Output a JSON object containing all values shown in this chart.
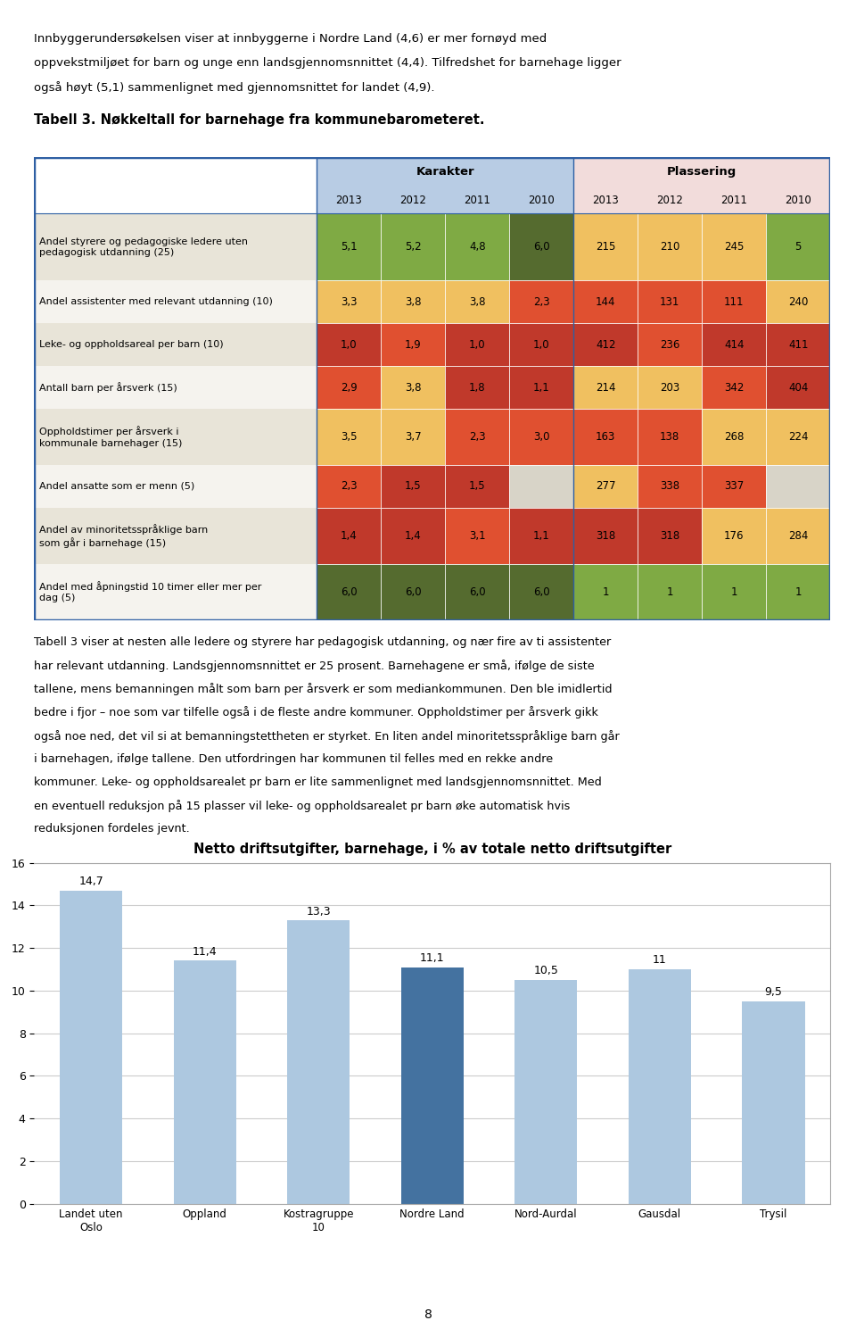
{
  "intro_lines": [
    "Innbyggerundersøkelsen viser at innbyggerne i Nordre Land (4,6) er mer fornøyd med",
    "oppvekstmiljøet for barn og unge enn landsgjennomsnnittet (4,4). Tilfredshet for barnehage ligger",
    "også høyt (5,1) sammenlignet med gjennomsnittet for landet (4,9)."
  ],
  "table_title": "Tabell 3. Nøkkeltall for barnehage fra kommunebarometeret.",
  "table_rows": [
    {
      "label": "Andel styrere og pedagogiske ledere uten\npedagogisk utdanning (25)",
      "kar_2013": "5,1",
      "kar_2012": "5,2",
      "kar_2011": "4,8",
      "kar_2010": "6,0",
      "pla_2013": "215",
      "pla_2012": "210",
      "pla_2011": "245",
      "pla_2010": "5",
      "kar_colors": [
        "#7faa44",
        "#7faa44",
        "#7faa44",
        "#556b2f"
      ],
      "pla_colors": [
        "#f0c060",
        "#f0c060",
        "#f0c060",
        "#7faa44"
      ]
    },
    {
      "label": "Andel assistenter med relevant utdanning (10)",
      "kar_2013": "3,3",
      "kar_2012": "3,8",
      "kar_2011": "3,8",
      "kar_2010": "2,3",
      "pla_2013": "144",
      "pla_2012": "131",
      "pla_2011": "111",
      "pla_2010": "240",
      "kar_colors": [
        "#f0c060",
        "#f0c060",
        "#f0c060",
        "#e05030"
      ],
      "pla_colors": [
        "#e05030",
        "#e05030",
        "#e05030",
        "#f0c060"
      ]
    },
    {
      "label": "Leke- og oppholdsareal per barn (10)",
      "kar_2013": "1,0",
      "kar_2012": "1,9",
      "kar_2011": "1,0",
      "kar_2010": "1,0",
      "pla_2013": "412",
      "pla_2012": "236",
      "pla_2011": "414",
      "pla_2010": "411",
      "kar_colors": [
        "#c0392b",
        "#e05030",
        "#c0392b",
        "#c0392b"
      ],
      "pla_colors": [
        "#c0392b",
        "#e05030",
        "#c0392b",
        "#c0392b"
      ]
    },
    {
      "label": "Antall barn per årsverk (15)",
      "kar_2013": "2,9",
      "kar_2012": "3,8",
      "kar_2011": "1,8",
      "kar_2010": "1,1",
      "pla_2013": "214",
      "pla_2012": "203",
      "pla_2011": "342",
      "pla_2010": "404",
      "kar_colors": [
        "#e05030",
        "#f0c060",
        "#c0392b",
        "#c0392b"
      ],
      "pla_colors": [
        "#f0c060",
        "#f0c060",
        "#e05030",
        "#c0392b"
      ]
    },
    {
      "label": "Oppholdstimer per årsverk i\nkommunale barnehager (15)",
      "kar_2013": "3,5",
      "kar_2012": "3,7",
      "kar_2011": "2,3",
      "kar_2010": "3,0",
      "pla_2013": "163",
      "pla_2012": "138",
      "pla_2011": "268",
      "pla_2010": "224",
      "kar_colors": [
        "#f0c060",
        "#f0c060",
        "#e05030",
        "#e05030"
      ],
      "pla_colors": [
        "#e05030",
        "#e05030",
        "#f0c060",
        "#f0c060"
      ]
    },
    {
      "label": "Andel ansatte som er menn (5)",
      "kar_2013": "2,3",
      "kar_2012": "1,5",
      "kar_2011": "1,5",
      "kar_2010": "",
      "pla_2013": "277",
      "pla_2012": "338",
      "pla_2011": "337",
      "pla_2010": "",
      "kar_colors": [
        "#e05030",
        "#c0392b",
        "#c0392b",
        "#d8d4c8"
      ],
      "pla_colors": [
        "#f0c060",
        "#e05030",
        "#e05030",
        "#d8d4c8"
      ]
    },
    {
      "label": "Andel av minoritetsspråklige barn\nsom går i barnehage (15)",
      "kar_2013": "1,4",
      "kar_2012": "1,4",
      "kar_2011": "3,1",
      "kar_2010": "1,1",
      "pla_2013": "318",
      "pla_2012": "318",
      "pla_2011": "176",
      "pla_2010": "284",
      "kar_colors": [
        "#c0392b",
        "#c0392b",
        "#e05030",
        "#c0392b"
      ],
      "pla_colors": [
        "#c0392b",
        "#c0392b",
        "#f0c060",
        "#f0c060"
      ]
    },
    {
      "label": "Andel med åpningstid 10 timer eller mer per\ndag (5)",
      "kar_2013": "6,0",
      "kar_2012": "6,0",
      "kar_2011": "6,0",
      "kar_2010": "6,0",
      "pla_2013": "1",
      "pla_2012": "1",
      "pla_2011": "1",
      "pla_2010": "1",
      "kar_colors": [
        "#556b2f",
        "#556b2f",
        "#556b2f",
        "#556b2f"
      ],
      "pla_colors": [
        "#7faa44",
        "#7faa44",
        "#7faa44",
        "#7faa44"
      ]
    }
  ],
  "para_lines": [
    "Tabell 3 viser at nesten alle ledere og styrere har pedagogisk utdanning, og nær fire av ti assistenter",
    "har relevant utdanning. Landsgjennomsnnittet er 25 prosent. Barnehagene er små, ifølge de siste",
    "tallene, mens bemanningen målt som barn per årsverk er som mediankommunen. Den ble imidlertid",
    "bedre i fjor – noe som var tilfelle også i de fleste andre kommuner. Oppholdstimer per årsverk gikk",
    "også noe ned, det vil si at bemanningstettheten er styrket. En liten andel minoritetsspråklige barn går",
    "i barnehagen, ifølge tallene. Den utfordringen har kommunen til felles med en rekke andre",
    "kommuner. Leke- og oppholdsarealet pr barn er lite sammenlignet med landsgjennomsnnittet. Med",
    "en eventuell reduksjon på 15 plasser vil leke- og oppholdsarealet pr barn øke automatisk hvis",
    "reduksjonen fordeles jevnt."
  ],
  "chart_title": "Netto driftsutgifter, barnehage, i % av totale netto driftsutgifter",
  "bar_categories": [
    "Landet uten\nOslo",
    "Oppland",
    "Kostragruppe\n10",
    "Nordre Land",
    "Nord-Aurdal",
    "Gausdal",
    "Trysil"
  ],
  "bar_values": [
    14.7,
    11.4,
    13.3,
    11.1,
    10.5,
    11.0,
    9.5
  ],
  "bar_colors": [
    "#adc8e0",
    "#adc8e0",
    "#adc8e0",
    "#4472a0",
    "#adc8e0",
    "#adc8e0",
    "#adc8e0"
  ],
  "bar_labels": [
    "14,7",
    "11,4",
    "13,3",
    "11,1",
    "10,5",
    "11",
    "9,5"
  ],
  "ylim": [
    0,
    16
  ],
  "yticks": [
    0,
    2,
    4,
    6,
    8,
    10,
    12,
    14,
    16
  ],
  "page_number": "8",
  "table_border_color": "#2e5fa3",
  "header_kar_bg": "#b8cce4",
  "header_pla_bg": "#f2dcdb",
  "row_bg_odd": "#e8e4d8",
  "row_bg_even": "#f5f3ee"
}
